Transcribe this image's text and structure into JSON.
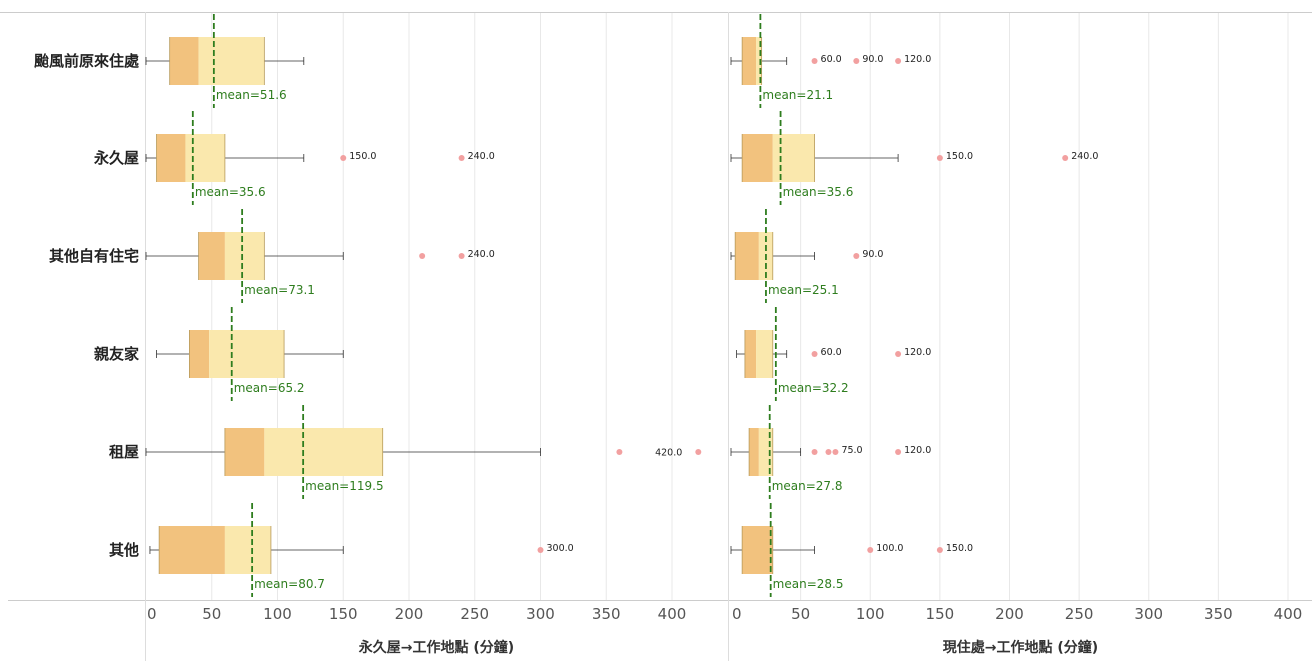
{
  "chart_data": {
    "type": "boxplot",
    "categories": [
      "颱風前原來住處",
      "永久屋",
      "其他自有住宅",
      "親友家",
      "租屋",
      "其他"
    ],
    "panels": [
      {
        "xlabel": "永久屋→工作地點 (分鐘)",
        "xlim": [
          0,
          400
        ],
        "xticks": [
          "0",
          "50",
          "100",
          "150",
          "200",
          "250",
          "300",
          "350",
          "400"
        ],
        "boxes": [
          {
            "category": "颱風前原來住處",
            "min": 0,
            "q1": 18,
            "median": 40,
            "q3": 90,
            "max": 120,
            "mean": 51.6,
            "mean_label": "mean=51.6",
            "outliers": []
          },
          {
            "category": "永久屋",
            "min": 0,
            "q1": 8,
            "median": 30,
            "q3": 60,
            "max": 120,
            "mean": 35.6,
            "mean_label": "mean=35.6",
            "outliers": [
              {
                "x": 150,
                "label": "150.0"
              },
              {
                "x": 240,
                "label": "240.0"
              }
            ]
          },
          {
            "category": "其他自有住宅",
            "min": 0,
            "q1": 40,
            "median": 60,
            "q3": 90,
            "max": 150,
            "mean": 73.1,
            "mean_label": "mean=73.1",
            "outliers": [
              {
                "x": 210,
                "label": ""
              },
              {
                "x": 240,
                "label": "240.0"
              }
            ]
          },
          {
            "category": "親友家",
            "min": 8,
            "q1": 33,
            "median": 48,
            "q3": 105,
            "max": 150,
            "mean": 65.2,
            "mean_label": "mean=65.2",
            "outliers": []
          },
          {
            "category": "租屋",
            "min": 0,
            "q1": 60,
            "median": 90,
            "q3": 180,
            "max": 300,
            "mean": 119.5,
            "mean_label": "mean=119.5",
            "outliers": [
              {
                "x": 360,
                "label": ""
              },
              {
                "x": 420,
                "label": "420.0",
                "label_side": "left"
              }
            ]
          },
          {
            "category": "其他",
            "min": 3,
            "q1": 10,
            "median": 60,
            "q3": 95,
            "max": 150,
            "mean": 80.7,
            "mean_label": "mean=80.7",
            "outliers": [
              {
                "x": 300,
                "label": "300.0"
              }
            ]
          }
        ]
      },
      {
        "xlabel": "現住處→工作地點 (分鐘)",
        "xlim": [
          0,
          400
        ],
        "xticks": [
          "0",
          "50",
          "100",
          "150",
          "200",
          "250",
          "300",
          "350",
          "400"
        ],
        "boxes": [
          {
            "category": "颱風前原來住處",
            "min": 0,
            "q1": 8,
            "median": 18,
            "q3": 22,
            "max": 40,
            "mean": 21.1,
            "mean_label": "mean=21.1",
            "outliers": [
              {
                "x": 60,
                "label": "60.0"
              },
              {
                "x": 90,
                "label": "90.0"
              },
              {
                "x": 120,
                "label": "120.0"
              }
            ]
          },
          {
            "category": "永久屋",
            "min": 0,
            "q1": 8,
            "median": 30,
            "q3": 60,
            "max": 120,
            "mean": 35.6,
            "mean_label": "mean=35.6",
            "outliers": [
              {
                "x": 150,
                "label": "150.0"
              },
              {
                "x": 240,
                "label": "240.0"
              }
            ]
          },
          {
            "category": "其他自有住宅",
            "min": 0,
            "q1": 3,
            "median": 20,
            "q3": 30,
            "max": 60,
            "mean": 25.1,
            "mean_label": "mean=25.1",
            "outliers": [
              {
                "x": 90,
                "label": "90.0"
              }
            ]
          },
          {
            "category": "親友家",
            "min": 4,
            "q1": 10,
            "median": 18,
            "q3": 30,
            "max": 40,
            "mean": 32.2,
            "mean_label": "mean=32.2",
            "outliers": [
              {
                "x": 60,
                "label": "60.0"
              },
              {
                "x": 120,
                "label": "120.0"
              }
            ]
          },
          {
            "category": "租屋",
            "min": 0,
            "q1": 13,
            "median": 20,
            "q3": 30,
            "max": 50,
            "mean": 27.8,
            "mean_label": "mean=27.8",
            "outliers": [
              {
                "x": 60,
                "label": ""
              },
              {
                "x": 70,
                "label": ""
              },
              {
                "x": 75,
                "label": "75.0"
              },
              {
                "x": 120,
                "label": "120.0"
              }
            ]
          },
          {
            "category": "其他",
            "min": 0,
            "q1": 8,
            "median": 30,
            "q3": 30,
            "max": 60,
            "mean": 28.5,
            "mean_label": "mean=28.5",
            "outliers": [
              {
                "x": 100,
                "label": "100.0"
              },
              {
                "x": 150,
                "label": "150.0"
              }
            ]
          }
        ]
      }
    ],
    "colors": {
      "box_lower": "#f2c27e",
      "box_upper": "#fae8ad",
      "box_edge": "#b79a5a",
      "whisker": "#333333",
      "mean_line": "#2e7d1e",
      "mean_text": "#2e7d1e",
      "outlier": "#f2a0a0",
      "grid": "#e8e8e8",
      "frame": "#cccccc"
    },
    "grid": true
  }
}
